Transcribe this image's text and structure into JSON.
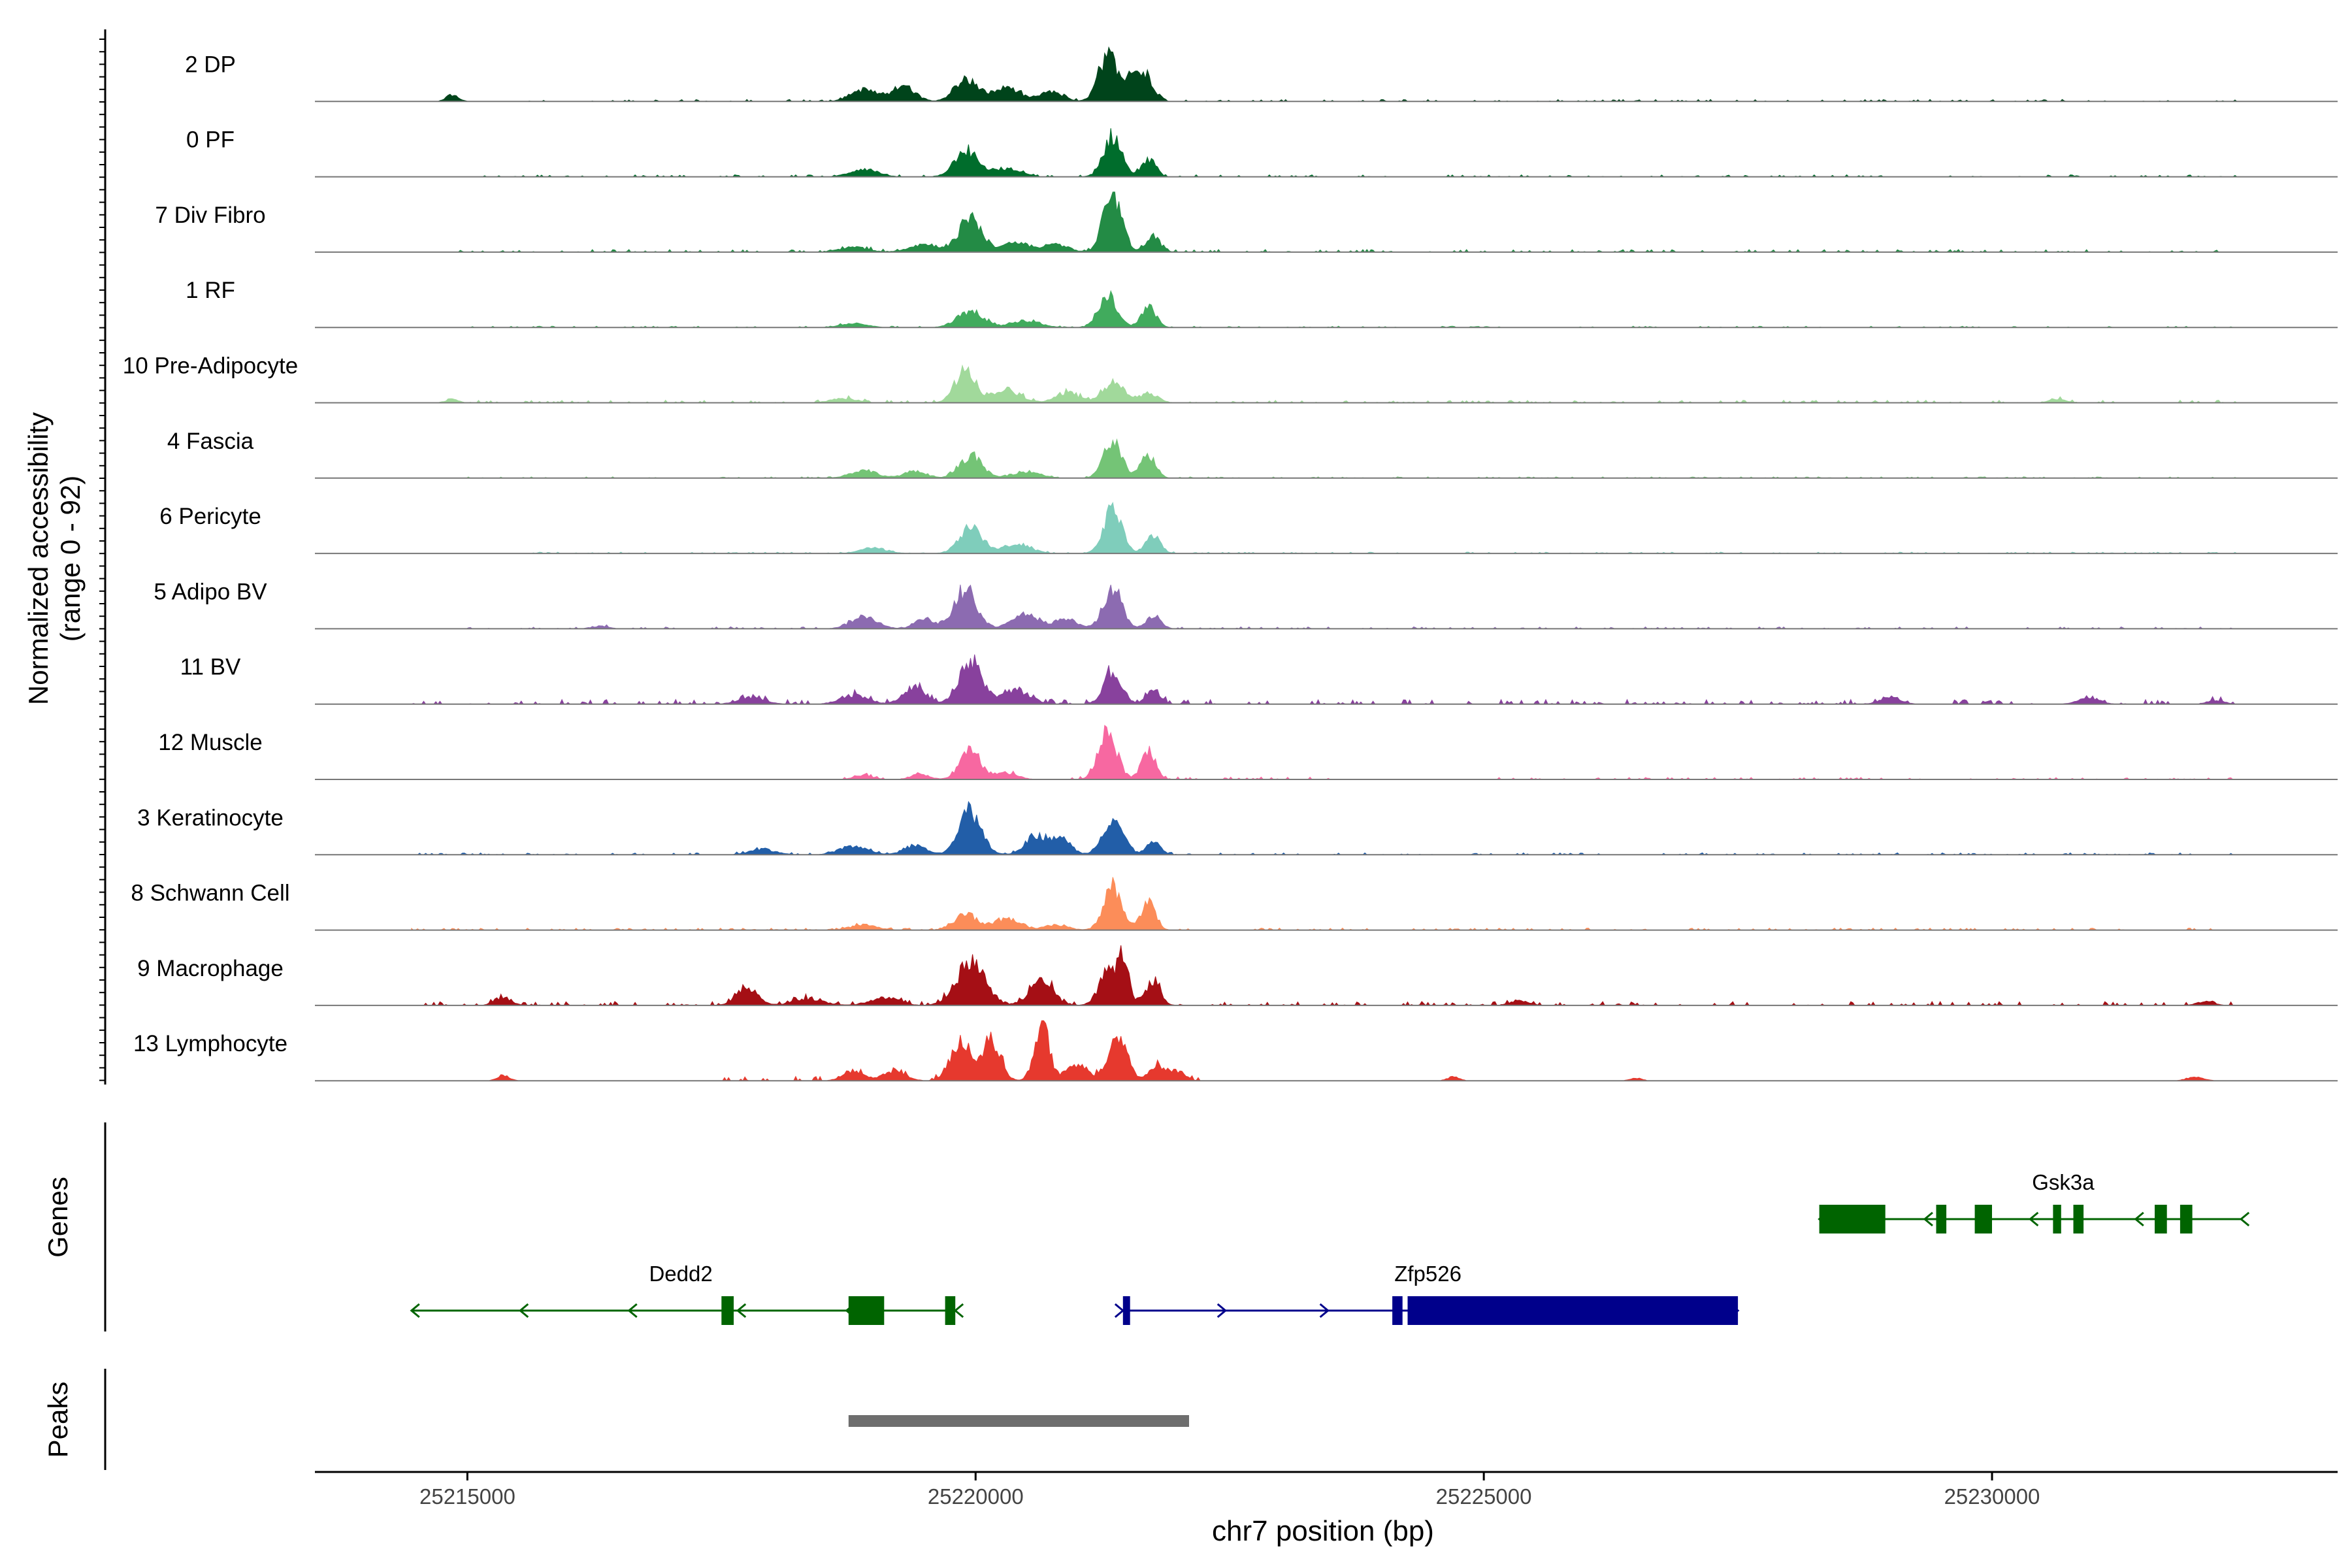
{
  "chart_data": {
    "type": "area",
    "title": "",
    "ylabel_line1": "Normalized accessibility",
    "ylabel_line2": "(range 0 - 92)",
    "y_range": [
      0,
      92
    ],
    "xlabel": "chr7 position (bp)",
    "xlim": [
      25213500,
      25233400
    ],
    "x_ticks": [
      {
        "value": 25215000,
        "label": "25215000"
      },
      {
        "value": 25220000,
        "label": "25220000"
      },
      {
        "value": 25225000,
        "label": "25225000"
      },
      {
        "value": 25230000,
        "label": "25230000"
      }
    ],
    "track_extent": [
      25214450,
      25232450
    ],
    "tracks": [
      {
        "name": "2 DP",
        "color": "#00441b",
        "peaks": [
          [
            25214850,
            10,
            60
          ],
          [
            25218900,
            18,
            130
          ],
          [
            25219300,
            22,
            110
          ],
          [
            25219900,
            34,
            110
          ],
          [
            25220300,
            20,
            140
          ],
          [
            25220750,
            14,
            110
          ],
          [
            25221300,
            70,
            90
          ],
          [
            25221550,
            40,
            90
          ],
          [
            25221700,
            28,
            70
          ]
        ],
        "noise": [
          [
            25215600,
            25232400,
            3
          ]
        ]
      },
      {
        "name": "0 PF",
        "color": "#006d2c",
        "peaks": [
          [
            25218900,
            12,
            130
          ],
          [
            25219900,
            40,
            110
          ],
          [
            25220300,
            12,
            140
          ],
          [
            25221350,
            62,
            90
          ],
          [
            25221700,
            26,
            70
          ]
        ],
        "noise": [
          [
            25215000,
            25232400,
            3
          ]
        ]
      },
      {
        "name": "7 Div Fibro",
        "color": "#238b45",
        "peaks": [
          [
            25218800,
            8,
            130
          ],
          [
            25219500,
            12,
            150
          ],
          [
            25219950,
            52,
            110
          ],
          [
            25220400,
            14,
            140
          ],
          [
            25220800,
            12,
            110
          ],
          [
            25221350,
            88,
            90
          ],
          [
            25221750,
            22,
            70
          ]
        ],
        "noise": [
          [
            25214900,
            25232400,
            4
          ]
        ]
      },
      {
        "name": "1 RF",
        "color": "#41ab5d",
        "peaks": [
          [
            25218800,
            6,
            130
          ],
          [
            25219950,
            24,
            130
          ],
          [
            25220500,
            10,
            140
          ],
          [
            25221300,
            50,
            90
          ],
          [
            25221700,
            34,
            70
          ]
        ],
        "noise": [
          [
            25215000,
            25232400,
            2
          ]
        ]
      },
      {
        "name": "10 Pre-Adipocyte",
        "color": "#a1d99b",
        "peaks": [
          [
            25214850,
            6,
            60
          ],
          [
            25218700,
            6,
            130
          ],
          [
            25219900,
            48,
            100
          ],
          [
            25220300,
            20,
            140
          ],
          [
            25220900,
            16,
            110
          ],
          [
            25221350,
            30,
            110
          ],
          [
            25221700,
            14,
            90
          ],
          [
            25230650,
            6,
            80
          ]
        ],
        "noise": [
          [
            25215000,
            25232400,
            4
          ]
        ]
      },
      {
        "name": "4 Fascia",
        "color": "#74c476",
        "peaks": [
          [
            25218900,
            12,
            130
          ],
          [
            25219400,
            10,
            110
          ],
          [
            25219950,
            34,
            110
          ],
          [
            25220500,
            10,
            140
          ],
          [
            25221350,
            56,
            90
          ],
          [
            25221700,
            36,
            70
          ]
        ],
        "noise": [
          [
            25215000,
            25232400,
            2
          ]
        ]
      },
      {
        "name": "6 Pericyte",
        "color": "#7fcdbb",
        "peaks": [
          [
            25219000,
            8,
            130
          ],
          [
            25219950,
            38,
            110
          ],
          [
            25220400,
            14,
            140
          ],
          [
            25221350,
            66,
            90
          ],
          [
            25221750,
            28,
            70
          ]
        ],
        "noise": [
          [
            25215000,
            25232400,
            2
          ]
        ]
      },
      {
        "name": "5 Adipo BV",
        "color": "#8c6bb1",
        "peaks": [
          [
            25216300,
            4,
            80
          ],
          [
            25218900,
            18,
            130
          ],
          [
            25219500,
            14,
            100
          ],
          [
            25219900,
            60,
            110
          ],
          [
            25220500,
            20,
            140
          ],
          [
            25220900,
            14,
            110
          ],
          [
            25221350,
            62,
            90
          ],
          [
            25221750,
            20,
            70
          ]
        ],
        "noise": [
          [
            25215000,
            25232400,
            3
          ]
        ]
      },
      {
        "name": "11 BV",
        "color": "#88419d",
        "peaks": [
          [
            25217800,
            10,
            130
          ],
          [
            25218800,
            14,
            130
          ],
          [
            25219400,
            26,
            110
          ],
          [
            25219950,
            66,
            110
          ],
          [
            25220400,
            20,
            140
          ],
          [
            25221350,
            48,
            90
          ],
          [
            25221750,
            20,
            70
          ],
          [
            25229000,
            10,
            100
          ],
          [
            25230950,
            10,
            100
          ],
          [
            25232200,
            6,
            80
          ]
        ],
        "noise": [
          [
            25214450,
            25232400,
            7
          ]
        ]
      },
      {
        "name": "12 Muscle",
        "color": "#f768a1",
        "peaks": [
          [
            25218900,
            6,
            90
          ],
          [
            25219450,
            8,
            90
          ],
          [
            25219950,
            44,
            100
          ],
          [
            25220300,
            10,
            110
          ],
          [
            25221300,
            70,
            90
          ],
          [
            25221700,
            42,
            70
          ]
        ],
        "noise": [
          [
            25218500,
            25223500,
            4
          ],
          [
            25225000,
            25232400,
            3
          ]
        ]
      },
      {
        "name": "3 Keratinocyte",
        "color": "#225ea8",
        "peaks": [
          [
            25217900,
            8,
            130
          ],
          [
            25218800,
            14,
            130
          ],
          [
            25219400,
            14,
            110
          ],
          [
            25219950,
            66,
            110
          ],
          [
            25220600,
            30,
            110
          ],
          [
            25220850,
            24,
            90
          ],
          [
            25221350,
            56,
            100
          ],
          [
            25221750,
            18,
            70
          ]
        ],
        "noise": [
          [
            25214450,
            25232400,
            3
          ]
        ]
      },
      {
        "name": "8 Schwann Cell",
        "color": "#fc8d59",
        "peaks": [
          [
            25218900,
            8,
            130
          ],
          [
            25219900,
            24,
            110
          ],
          [
            25220300,
            16,
            140
          ],
          [
            25220800,
            8,
            110
          ],
          [
            25221350,
            66,
            90
          ],
          [
            25221700,
            40,
            70
          ]
        ],
        "noise": [
          [
            25214450,
            25232400,
            3
          ]
        ]
      },
      {
        "name": "9 Macrophage",
        "color": "#a50f15",
        "peaks": [
          [
            25215350,
            12,
            80
          ],
          [
            25217750,
            28,
            100
          ],
          [
            25218350,
            10,
            150
          ],
          [
            25219100,
            12,
            140
          ],
          [
            25219950,
            64,
            140
          ],
          [
            25220650,
            40,
            110
          ],
          [
            25221300,
            46,
            90
          ],
          [
            25221450,
            66,
            60
          ],
          [
            25221750,
            38,
            70
          ],
          [
            25225350,
            8,
            90
          ],
          [
            25232100,
            6,
            80
          ]
        ],
        "noise": [
          [
            25214450,
            25232400,
            6
          ]
        ]
      },
      {
        "name": "13 Lymphocyte",
        "color": "#e6392e",
        "peaks": [
          [
            25215350,
            8,
            60
          ],
          [
            25218800,
            16,
            100
          ],
          [
            25219200,
            14,
            110
          ],
          [
            25219850,
            58,
            100
          ],
          [
            25220150,
            60,
            90
          ],
          [
            25220650,
            90,
            70
          ],
          [
            25221000,
            24,
            110
          ],
          [
            25221400,
            62,
            90
          ],
          [
            25221800,
            22,
            90
          ],
          [
            25222000,
            12,
            70
          ],
          [
            25224700,
            6,
            60
          ],
          [
            25226500,
            4,
            60
          ],
          [
            25232000,
            6,
            80
          ]
        ],
        "noise": [
          [
            25217500,
            25222200,
            7
          ]
        ]
      }
    ],
    "genes_label": "Genes",
    "genes": [
      {
        "name": "Dedd2",
        "color": "#006400",
        "strand": "-",
        "start": 25214450,
        "end": 25219800,
        "row": 1,
        "label_pos": 25217100,
        "exons": [
          [
            25217500,
            25217620
          ],
          [
            25218750,
            25219100
          ],
          [
            25219700,
            25219800
          ]
        ]
      },
      {
        "name": "Zfp526",
        "color": "#00008b",
        "strand": "+",
        "start": 25221450,
        "end": 25227500,
        "row": 1,
        "label_pos": 25224450,
        "exons": [
          [
            25221450,
            25221520
          ],
          [
            25224100,
            25224200
          ],
          [
            25224250,
            25227500
          ]
        ]
      },
      {
        "name": "Gsk3a",
        "color": "#006400",
        "strand": "-",
        "start": 25228300,
        "end": 25232450,
        "row": 0,
        "label_pos": 25230700,
        "exons": [
          [
            25228300,
            25228950
          ],
          [
            25229450,
            25229550
          ],
          [
            25229830,
            25230000
          ],
          [
            25230600,
            25230680
          ],
          [
            25230800,
            25230900
          ],
          [
            25231600,
            25231720
          ],
          [
            25231850,
            25231970
          ]
        ]
      }
    ],
    "peaks_label": "Peaks",
    "peak_regions": [
      [
        25218750,
        25222100
      ]
    ]
  }
}
